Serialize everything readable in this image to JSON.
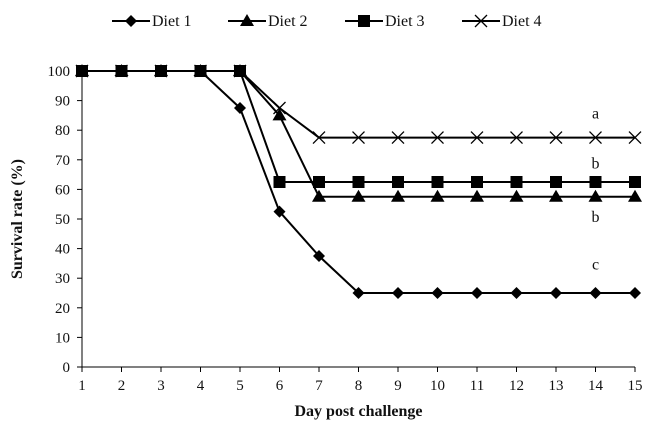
{
  "chart_data": {
    "type": "line",
    "title": "",
    "xlabel": "Day post challenge",
    "ylabel": "Survival rate (%)",
    "x": [
      1,
      2,
      3,
      4,
      5,
      6,
      7,
      8,
      9,
      10,
      11,
      12,
      13,
      14,
      15
    ],
    "xlim": [
      1,
      15
    ],
    "ylim": [
      0,
      100
    ],
    "yticks": [
      0,
      10,
      20,
      30,
      40,
      50,
      60,
      70,
      80,
      90,
      100
    ],
    "grid": false,
    "legend_position": "top",
    "series": [
      {
        "name": "Diet 1",
        "marker": "diamond",
        "color": "#000000",
        "values": [
          100,
          100,
          100,
          100,
          87.5,
          52.5,
          37.5,
          25,
          25,
          25,
          25,
          25,
          25,
          25,
          25
        ]
      },
      {
        "name": "Diet 2",
        "marker": "triangle",
        "color": "#000000",
        "values": [
          100,
          100,
          100,
          100,
          100,
          85,
          57.5,
          57.5,
          57.5,
          57.5,
          57.5,
          57.5,
          57.5,
          57.5,
          57.5
        ]
      },
      {
        "name": "Diet 3",
        "marker": "square",
        "color": "#000000",
        "values": [
          100,
          100,
          100,
          100,
          100,
          62.5,
          62.5,
          62.5,
          62.5,
          62.5,
          62.5,
          62.5,
          62.5,
          62.5,
          62.5
        ]
      },
      {
        "name": "Diet 4",
        "marker": "cross",
        "color": "#000000",
        "values": [
          100,
          100,
          100,
          100,
          100,
          87.5,
          77.5,
          77.5,
          77.5,
          77.5,
          77.5,
          77.5,
          77.5,
          77.5,
          77.5
        ]
      }
    ],
    "annotations": [
      {
        "text": "a",
        "x": 14,
        "y": 84
      },
      {
        "text": "b",
        "x": 14,
        "y": 67
      },
      {
        "text": "b",
        "x": 14,
        "y": 49
      },
      {
        "text": "c",
        "x": 14,
        "y": 33
      }
    ]
  }
}
